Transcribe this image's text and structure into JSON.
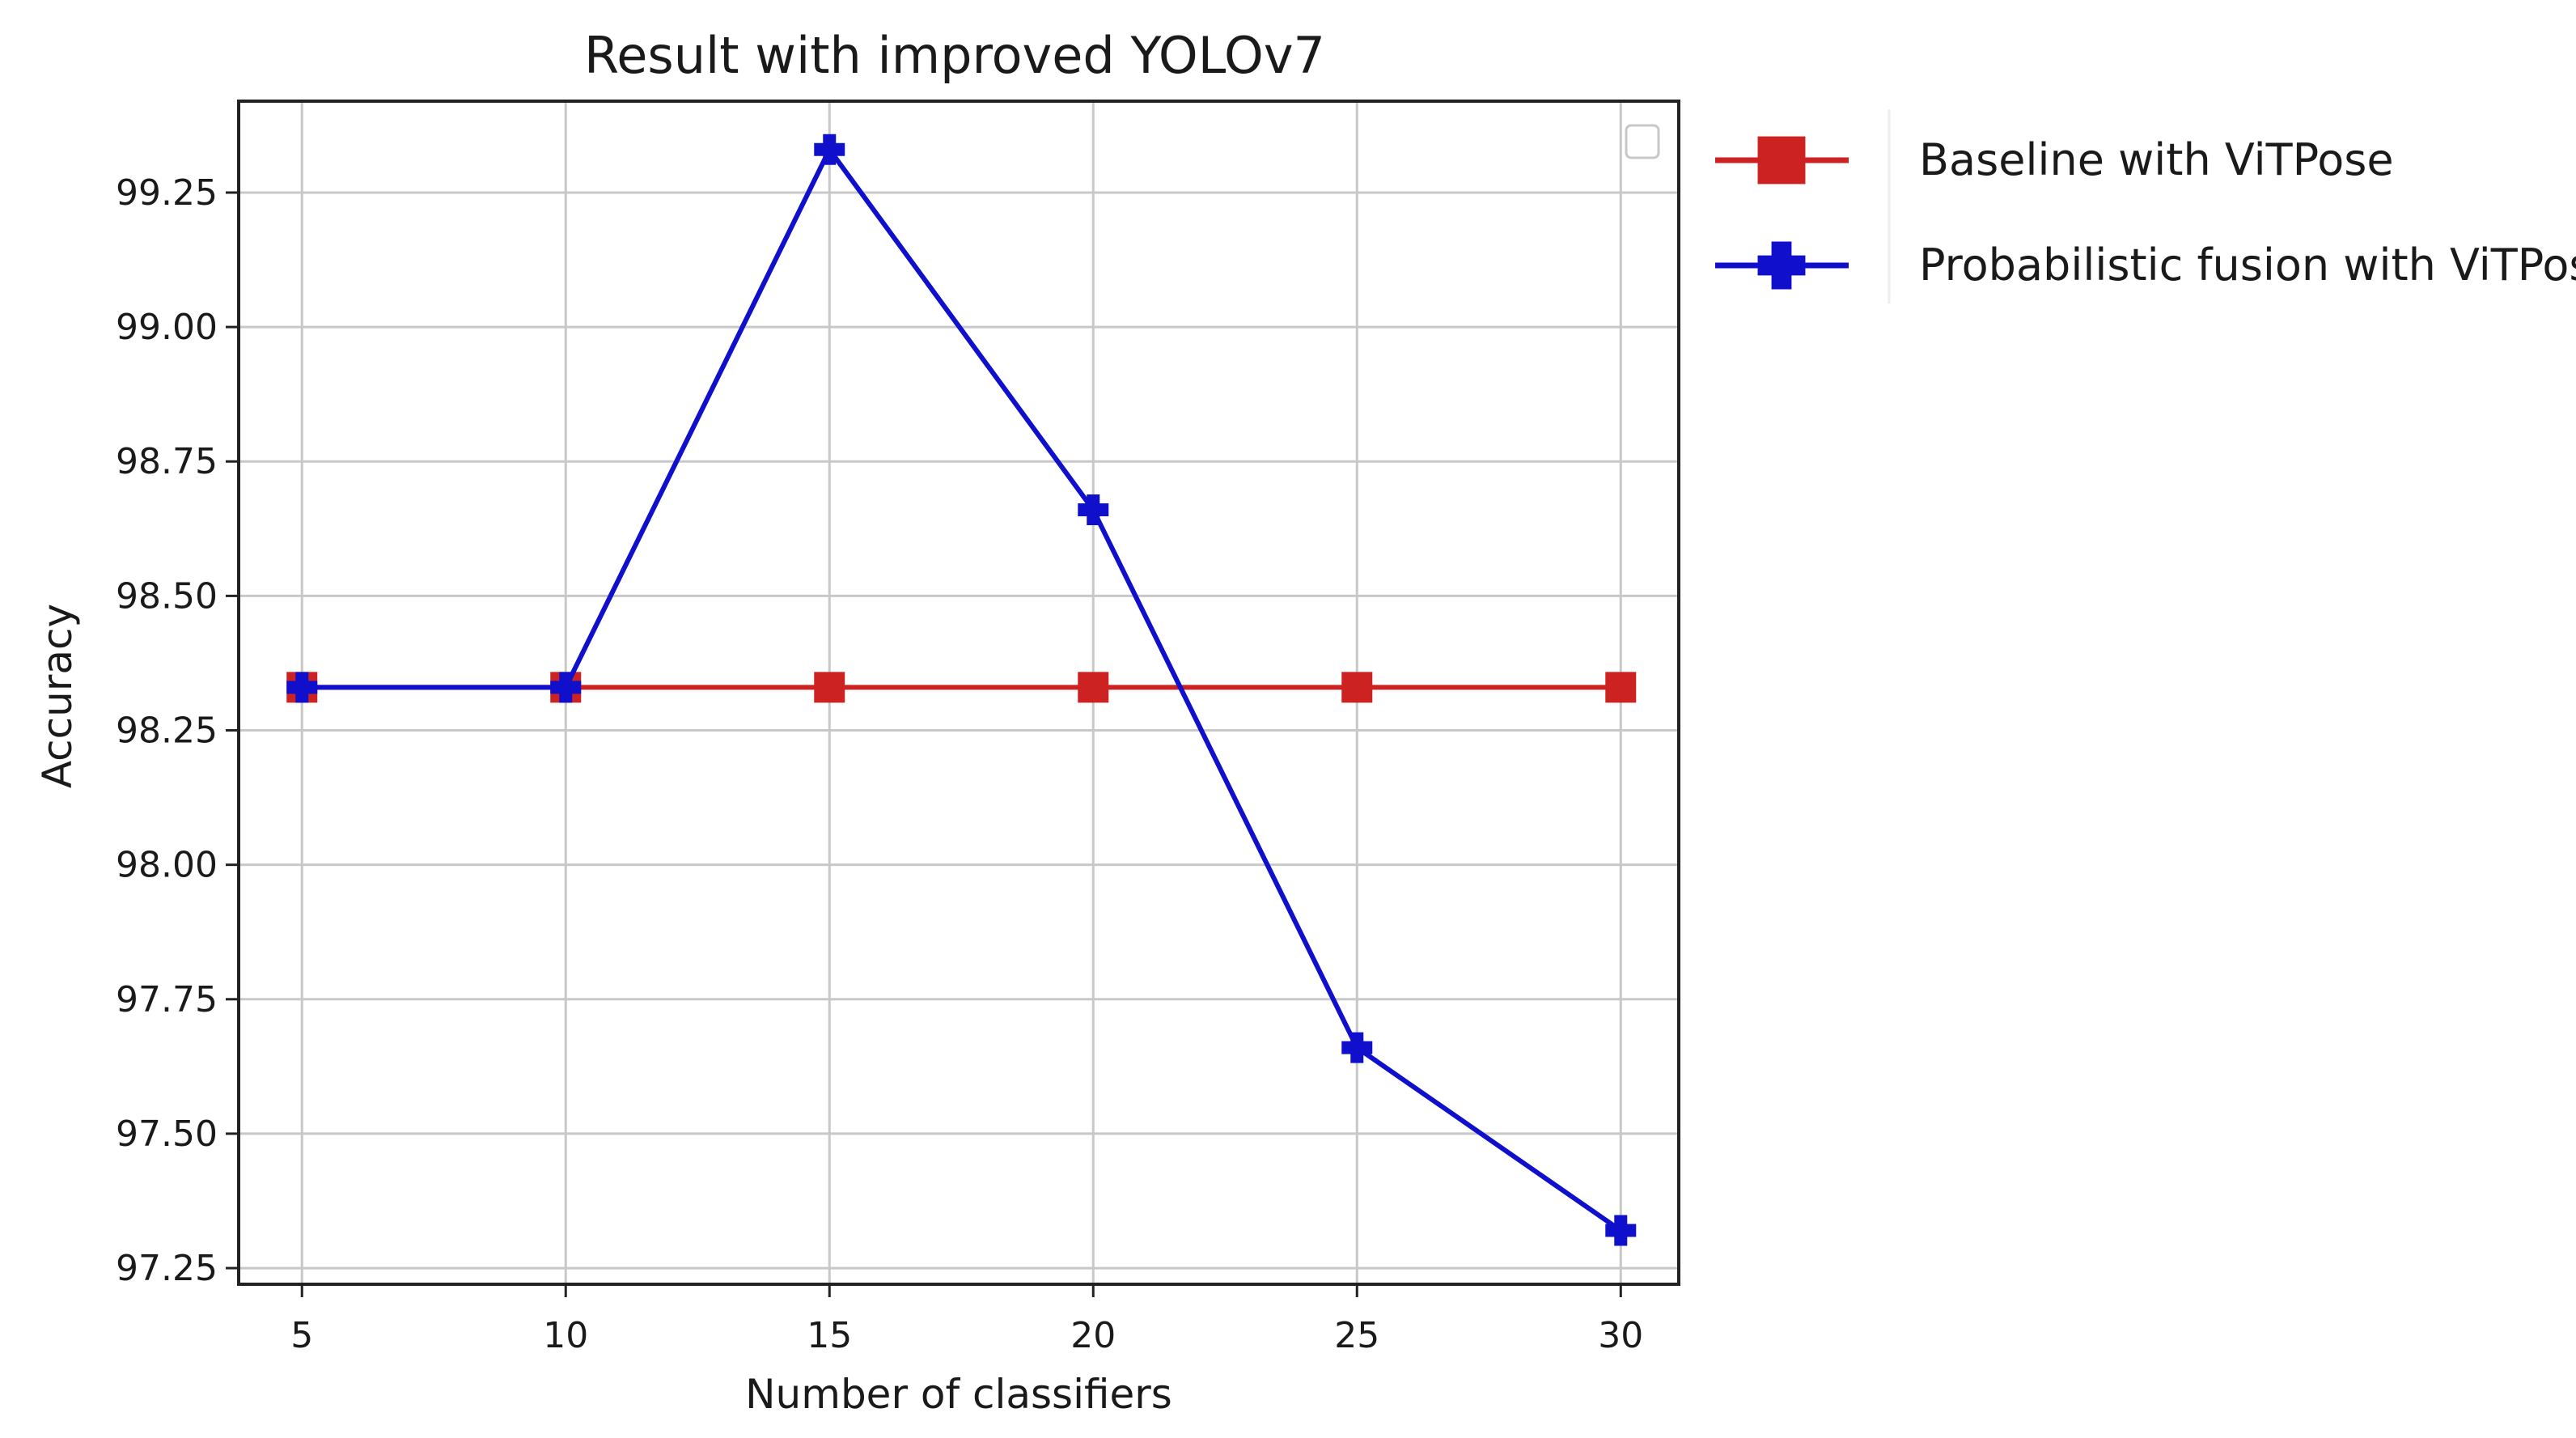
{
  "chart_data": {
    "type": "line",
    "title": "Result with improved YOLOv7",
    "xlabel": "Number of classifiers",
    "ylabel": "Accuracy",
    "x": [
      5,
      10,
      15,
      20,
      25,
      30
    ],
    "xticks": [
      "5",
      "10",
      "15",
      "20",
      "25",
      "30"
    ],
    "yticks": [
      "97.25",
      "97.50",
      "97.75",
      "98.00",
      "98.25",
      "98.50",
      "98.75",
      "99.00",
      "99.25"
    ],
    "xlim": [
      3.8,
      31.1
    ],
    "ylim": [
      97.22,
      99.42
    ],
    "grid": true,
    "legend_placement": "outside-right",
    "series": [
      {
        "name": "Baseline with ViTPose",
        "color": "#cc2222",
        "marker": "square",
        "values": [
          98.33,
          98.33,
          98.33,
          98.33,
          98.33,
          98.33
        ]
      },
      {
        "name": "Probabilistic fusion with ViTPose",
        "color": "#1010cc",
        "marker": "plus",
        "values": [
          98.33,
          98.33,
          99.33,
          98.66,
          97.66,
          97.32
        ]
      }
    ]
  }
}
